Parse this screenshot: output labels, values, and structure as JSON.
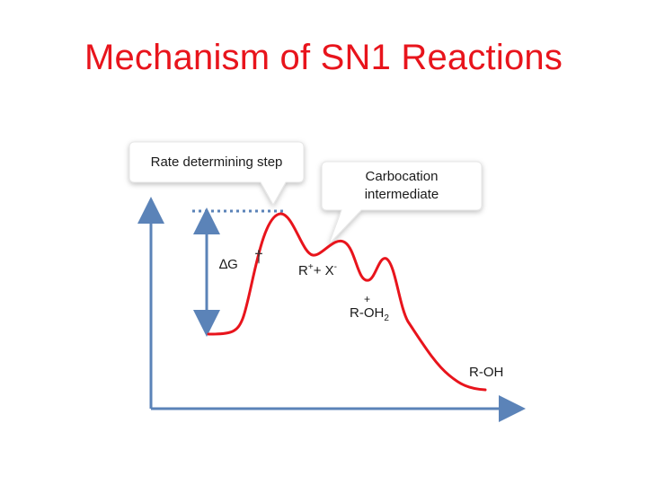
{
  "title": "Mechanism of SN1 Reactions",
  "callouts": {
    "rate_step": "Rate determining step",
    "intermediate_line1": "Carbocation",
    "intermediate_line2": "intermediate"
  },
  "labels": {
    "delta_g": "∆G",
    "delta_g_mark": "†",
    "carbocation_r": "R",
    "carbocation_charge": "+",
    "carbocation_plus": "+ X",
    "carbocation_anion_charge": "-",
    "oxonium_charge": "+",
    "oxonium_base": "R-OH",
    "oxonium_subscript": "2",
    "product": "R-OH"
  },
  "colors": {
    "title": "#e8141c",
    "curve": "#e8141c",
    "axes": "#5b83b8",
    "callout_fill": "#ffffff"
  }
}
